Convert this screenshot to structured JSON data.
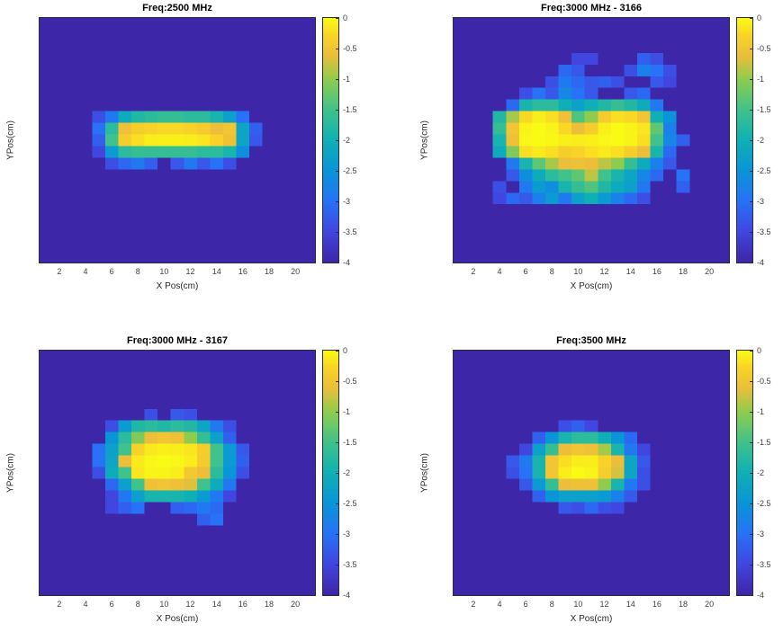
{
  "figure": {
    "background": "#ffffff"
  },
  "theme": {
    "title_color": "#000000",
    "tick_color": "#3f3f3f",
    "label_color": "#262626",
    "axis_box_color": "#2b2b35"
  },
  "axes": {
    "xlabel": "X Pos(cm)",
    "ylabel": "YPos(cm)",
    "x_ticks": [
      2,
      4,
      6,
      8,
      10,
      12,
      14,
      16,
      18,
      20
    ],
    "y_ticks": [
      2,
      4,
      6,
      8,
      10,
      12,
      14,
      16,
      18,
      20
    ],
    "x_range": [
      0.5,
      21.5
    ],
    "y_range": [
      0.5,
      21.5
    ],
    "grid": false
  },
  "colorbar": {
    "tick_labels": [
      "0",
      "-0.5",
      "-1",
      "-1.5",
      "-2",
      "-2.5",
      "-3",
      "-3.5",
      "-4"
    ],
    "max": 0,
    "min": -4,
    "position": "right-of-each-plot"
  },
  "colormap": {
    "name": "parula",
    "stops": [
      [
        0.0,
        "#3E26A8"
      ],
      [
        0.125,
        "#4146E0"
      ],
      [
        0.25,
        "#2772F7"
      ],
      [
        0.375,
        "#0A95D8"
      ],
      [
        0.5,
        "#0FB0B5"
      ],
      [
        0.625,
        "#3FC28B"
      ],
      [
        0.75,
        "#8FCC4E"
      ],
      [
        0.85,
        "#EDBE3A"
      ],
      [
        0.93,
        "#F9D327"
      ],
      [
        1.0,
        "#F9FB15"
      ]
    ]
  },
  "chart_data": [
    {
      "type": "heatmap",
      "title": "Freq:2500 MHz",
      "grid_size": 21,
      "value_range": [
        -4,
        0
      ],
      "default_value": -4,
      "cells": {
        "9": {
          "5": -3.4,
          "6": -2.9,
          "7": -2.1,
          "8": -1.8,
          "9": -1.7,
          "10": -1.6,
          "11": -1.6,
          "12": -1.7,
          "13": -1.7,
          "14": -1.9,
          "15": -2.3,
          "16": -3.0
        },
        "10": {
          "5": -3.0,
          "6": -1.7,
          "7": -0.55,
          "8": -0.35,
          "9": -0.3,
          "10": -0.25,
          "11": -0.25,
          "12": -0.3,
          "13": -0.4,
          "14": -0.6,
          "15": -0.5,
          "16": -2.2,
          "17": -3.2
        },
        "11": {
          "5": -3.2,
          "6": -1.5,
          "7": -0.35,
          "8": -0.2,
          "9": -0.1,
          "10": -0.08,
          "11": -0.08,
          "12": -0.1,
          "13": -0.15,
          "14": -0.3,
          "15": -0.55,
          "16": -2.2,
          "17": -3.3
        },
        "12": {
          "5": -3.5,
          "6": -2.4,
          "7": -1.7,
          "8": -1.6,
          "9": -1.6,
          "10": -1.6,
          "11": -1.6,
          "12": -1.6,
          "13": -1.7,
          "14": -1.7,
          "15": -1.9,
          "16": -2.6
        },
        "13": {
          "6": -3.4,
          "7": -3.1,
          "8": -2.9,
          "9": -3.2,
          "11": -3.3,
          "12": -2.9,
          "13": -3.3,
          "14": -3.0,
          "15": -3.4
        }
      }
    },
    {
      "type": "heatmap",
      "title": "Freq:3000 MHz - 3166",
      "grid_size": 21,
      "value_range": [
        -4,
        0
      ],
      "default_value": -4,
      "cells": {
        "4": {
          "10": -3.5,
          "11": -3.5,
          "15": -3.2,
          "16": -3.4
        },
        "5": {
          "9": -3.1,
          "10": -3.3,
          "14": -3.4,
          "15": -2.8,
          "16": -3.0,
          "17": -3.4
        },
        "6": {
          "8": -3.4,
          "9": -2.9,
          "10": -3.1,
          "11": -3.3,
          "12": -3.2,
          "13": -3.4,
          "16": -3.3,
          "17": -3.5
        },
        "7": {
          "6": -3.4,
          "7": -3.0,
          "8": -3.3,
          "9": -2.7,
          "10": -3.0,
          "11": -3.3,
          "14": -3.3,
          "15": -3.1
        },
        "8": {
          "5": -3.1,
          "6": -1.9,
          "7": -1.7,
          "8": -1.7,
          "9": -2.0,
          "10": -2.3,
          "11": -2.0,
          "12": -1.8,
          "13": -1.6,
          "14": -1.8,
          "15": -2.1,
          "16": -2.9
        },
        "9": {
          "4": -1.8,
          "5": -0.9,
          "6": -0.25,
          "7": -0.1,
          "8": -0.2,
          "9": -0.55,
          "10": -1.4,
          "11": -1.0,
          "12": -0.4,
          "13": -0.2,
          "14": -0.25,
          "15": -0.5,
          "16": -2.0,
          "17": -2.5
        },
        "10": {
          "4": -1.6,
          "5": -0.5,
          "6": -0.05,
          "7": 0,
          "8": -0.05,
          "9": -0.25,
          "10": -0.6,
          "11": -0.35,
          "12": -0.08,
          "13": 0,
          "14": -0.05,
          "15": -0.15,
          "16": -1.3,
          "17": -2.8
        },
        "11": {
          "4": -1.9,
          "5": -0.55,
          "6": -0.03,
          "7": 0,
          "8": -0.03,
          "9": -0.08,
          "10": -0.1,
          "11": -0.08,
          "12": -0.03,
          "13": 0,
          "14": -0.05,
          "15": -0.2,
          "16": -1.5,
          "17": -2.7,
          "18": -3.2
        },
        "12": {
          "4": -2.1,
          "5": -1.1,
          "6": -0.2,
          "7": -0.12,
          "8": -0.2,
          "9": -0.35,
          "10": -0.3,
          "11": -0.2,
          "12": -0.12,
          "13": -0.2,
          "14": -0.35,
          "15": -0.6,
          "16": -1.9,
          "17": -3.1
        },
        "13": {
          "5": -2.9,
          "6": -1.9,
          "7": -1.3,
          "8": -0.9,
          "9": -0.6,
          "10": -0.55,
          "11": -0.6,
          "12": -0.8,
          "13": -1.0,
          "14": -1.6,
          "15": -2.1,
          "16": -2.8,
          "17": -3.3
        },
        "14": {
          "5": -3.3,
          "6": -2.6,
          "7": -2.1,
          "8": -1.7,
          "9": -1.5,
          "10": -1.3,
          "11": -0.8,
          "12": -1.5,
          "13": -1.9,
          "14": -2.2,
          "15": -2.7,
          "16": -3.1,
          "18": -3.0
        },
        "15": {
          "4": -3.4,
          "6": -2.9,
          "7": -2.4,
          "8": -2.6,
          "9": -1.9,
          "10": -1.6,
          "11": -1.4,
          "12": -1.8,
          "13": -2.1,
          "14": -2.3,
          "15": -2.9,
          "18": -3.2
        },
        "16": {
          "4": -3.5,
          "5": -3.1,
          "6": -3.3,
          "7": -2.8,
          "8": -2.4,
          "9": -2.9,
          "10": -2.3,
          "11": -2.0,
          "12": -2.4,
          "13": -2.8,
          "14": -3.1,
          "15": -3.4
        }
      }
    },
    {
      "type": "heatmap",
      "title": "Freq:3000 MHz - 3167",
      "grid_size": 21,
      "value_range": [
        -4,
        0
      ],
      "default_value": -4,
      "cells": {
        "6": {
          "9": -3.4,
          "11": -3.3,
          "12": -3.4
        },
        "7": {
          "6": -3.4,
          "7": -2.4,
          "8": -1.8,
          "9": -1.7,
          "10": -1.8,
          "11": -1.7,
          "12": -1.8,
          "13": -2.2,
          "14": -2.9,
          "15": -3.4
        },
        "8": {
          "6": -2.5,
          "7": -1.7,
          "8": -1.1,
          "9": -0.6,
          "10": -0.5,
          "11": -0.55,
          "12": -1.0,
          "13": -1.6,
          "14": -2.3,
          "15": -3.2
        },
        "9": {
          "5": -3.0,
          "6": -2.3,
          "7": -1.5,
          "8": -0.3,
          "9": -0.12,
          "10": -0.08,
          "11": -0.1,
          "12": -0.15,
          "13": -0.35,
          "14": -1.5,
          "15": -2.4,
          "16": -3.3
        },
        "10": {
          "5": -3.0,
          "6": -2.2,
          "7": -0.6,
          "8": -0.12,
          "9": -0.03,
          "10": 0,
          "11": -0.03,
          "12": -0.1,
          "13": -0.4,
          "14": -1.5,
          "15": -2.4,
          "16": -3.2
        },
        "11": {
          "5": -3.4,
          "6": -2.1,
          "7": -1.5,
          "8": -0.15,
          "9": -0.05,
          "10": -0.05,
          "11": -0.1,
          "12": -0.45,
          "13": -0.6,
          "14": -1.7,
          "15": -2.5,
          "16": -3.4
        },
        "12": {
          "6": -3.1,
          "7": -2.3,
          "8": -1.5,
          "9": -0.55,
          "10": -0.5,
          "11": -0.55,
          "12": -0.65,
          "13": -1.5,
          "14": -2.1,
          "15": -2.9
        },
        "13": {
          "6": -3.5,
          "7": -2.9,
          "8": -2.3,
          "9": -1.9,
          "10": -1.9,
          "11": -1.9,
          "12": -2.0,
          "13": -2.4,
          "14": -2.9,
          "15": -3.5
        },
        "14": {
          "6": -3.5,
          "7": -3.2,
          "8": -3.0,
          "11": -3.2,
          "12": -3.1,
          "13": -2.9,
          "14": -3.1
        },
        "15": {
          "13": -3.2,
          "14": -3.0
        }
      }
    },
    {
      "type": "heatmap",
      "title": "Freq:3500 MHz",
      "grid_size": 21,
      "value_range": [
        -4,
        0
      ],
      "default_value": -4,
      "cells": {
        "7": {
          "9": -3.4,
          "10": -3.2,
          "11": -3.5
        },
        "8": {
          "7": -3.2,
          "8": -2.5,
          "9": -1.9,
          "10": -1.7,
          "11": -1.7,
          "12": -2.0,
          "13": -2.5,
          "14": -3.1
        },
        "9": {
          "6": -3.5,
          "7": -2.3,
          "8": -1.6,
          "9": -0.6,
          "10": -0.5,
          "11": -0.55,
          "12": -0.9,
          "13": -1.9,
          "14": -2.9,
          "15": -3.5
        },
        "10": {
          "5": -3.3,
          "6": -2.9,
          "7": -1.9,
          "8": -0.5,
          "9": -0.2,
          "10": -0.1,
          "11": -0.1,
          "12": -0.3,
          "13": -0.6,
          "14": -2.2,
          "15": -3.3
        },
        "11": {
          "5": -3.4,
          "6": -3.0,
          "7": -1.9,
          "8": -0.5,
          "9": -0.1,
          "10": 0,
          "11": -0.05,
          "12": -0.35,
          "13": -0.7,
          "14": -2.2,
          "15": -3.4
        },
        "12": {
          "6": -3.3,
          "7": -2.4,
          "8": -1.6,
          "9": -0.6,
          "10": -0.55,
          "11": -0.55,
          "12": -1.0,
          "13": -1.9,
          "14": -2.9,
          "15": -3.4
        },
        "13": {
          "7": -3.2,
          "8": -2.5,
          "9": -2.3,
          "10": -2.3,
          "11": -2.3,
          "12": -2.4,
          "13": -2.8,
          "14": -3.3
        },
        "14": {
          "9": -3.3,
          "10": -3.4,
          "11": -3.1,
          "12": -3.4,
          "13": -3.5
        }
      }
    }
  ]
}
